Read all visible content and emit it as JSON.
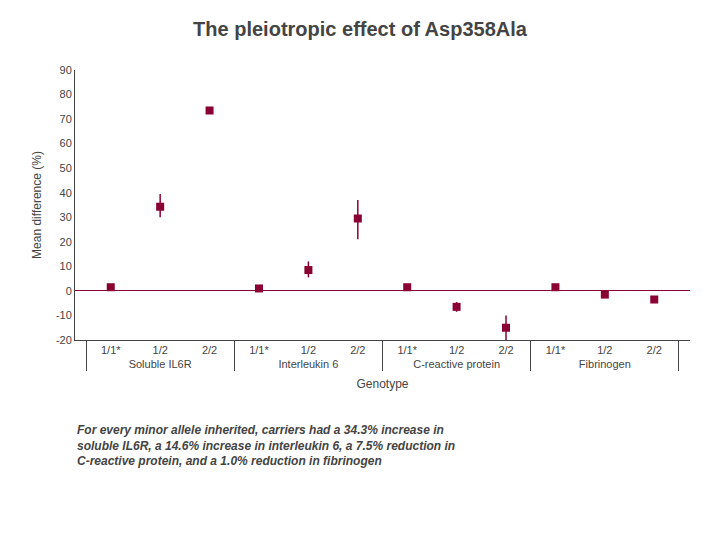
{
  "chart_data": {
    "type": "scatter",
    "title": "The pleiotropic effect of Asp358Ala",
    "subtitle": "For every minor allele inherited, carriers had a 34.3% increase in\nsoluble IL6R, a 14.6% increase in interleukin 6, a 7.5% reduction in\nC-reactive protein, and a 1.0% reduction in fibrinogen",
    "xlabel": "Genotype",
    "ylabel": "Mean difference (%)",
    "categories": [
      "1/1*",
      "1/2",
      "2/2"
    ],
    "groups": [
      {
        "name": "Soluble IL6R",
        "values": [
          1.5,
          34.3,
          73.5
        ],
        "ci_low": [
          null,
          30.0,
          null
        ],
        "ci_high": [
          null,
          39.5,
          null
        ]
      },
      {
        "name": "Interleukin 6",
        "values": [
          1.0,
          8.5,
          29.5
        ],
        "ci_low": [
          null,
          5.5,
          21.0
        ],
        "ci_high": [
          null,
          12.0,
          37.0
        ]
      },
      {
        "name": "C-reactive protein",
        "values": [
          1.5,
          -6.5,
          -15.0
        ],
        "ci_low": [
          null,
          -8.5,
          -20.0
        ],
        "ci_high": [
          null,
          -4.5,
          -10.0
        ]
      },
      {
        "name": "Fibrinogen",
        "values": [
          1.5,
          -1.5,
          -3.5
        ],
        "ci_low": [
          null,
          null,
          null
        ],
        "ci_high": [
          null,
          null,
          null
        ]
      }
    ],
    "color": "#8B0033",
    "marker": "square",
    "ylim": [
      -20,
      90
    ],
    "yticks": [
      -20,
      -10,
      0,
      10,
      20,
      30,
      40,
      50,
      60,
      70,
      80,
      90
    ],
    "grid": false
  }
}
